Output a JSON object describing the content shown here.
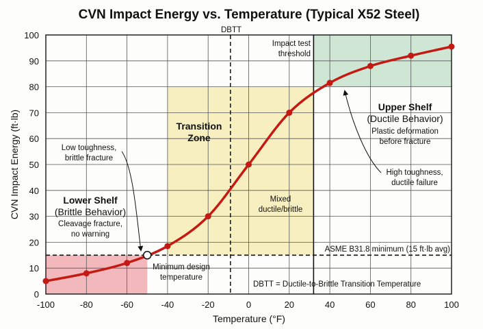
{
  "chart_data": {
    "type": "line",
    "title": "CVN Impact Energy vs. Temperature (Typical X52 Steel)",
    "xlabel": "Temperature (°F)",
    "ylabel": "CVN Impact Energy (ft·lb)",
    "xlim": [
      -100,
      100
    ],
    "ylim": [
      0,
      100
    ],
    "xticks": [
      -100,
      -80,
      -60,
      -40,
      -20,
      0,
      20,
      40,
      60,
      80,
      100
    ],
    "yticks": [
      0,
      10,
      20,
      30,
      40,
      50,
      60,
      70,
      80,
      90,
      100
    ],
    "grid": true,
    "series": [
      {
        "color": "#c41a14",
        "x": [
          -100,
          -80,
          -60,
          -40,
          -20,
          0,
          20,
          40,
          60,
          80,
          100
        ],
        "y": [
          5,
          8,
          12,
          18.5,
          30,
          50,
          70,
          81.5,
          88,
          92,
          95.5
        ]
      }
    ],
    "regions": [
      {
        "name": "lower-shelf",
        "x": [
          -100,
          -50
        ],
        "y": [
          0,
          15
        ],
        "color": "#f2b8bc"
      },
      {
        "name": "transition-zone",
        "x": [
          -40,
          32
        ],
        "y": [
          15,
          80
        ],
        "color": "#f7efbf"
      },
      {
        "name": "upper-shelf",
        "x": [
          32,
          100
        ],
        "y": [
          80,
          100
        ],
        "color": "#cfe6d5"
      }
    ],
    "dbtt": {
      "x": -9,
      "label": "DBTT"
    },
    "threshold": {
      "x": 32,
      "label1": "Impact test",
      "label2": "threshold"
    },
    "asme": {
      "y": 15,
      "label": "ASME B31.8 minimum (15 ft·lb avg)"
    },
    "design_point": {
      "x": -50,
      "y": 15,
      "label1": "Minimum design",
      "label2": "temperature"
    },
    "annotations": {
      "transition1": "Transition",
      "transition2": "Zone",
      "mixed1": "Mixed",
      "mixed2": "ductile/brittle",
      "lower_title": "Lower Shelf",
      "lower_sub": "(Brittle Behavior)",
      "lower_d1": "Cleavage fracture,",
      "lower_d2": "no warning",
      "low_t1": "Low toughness,",
      "low_t2": "brittle fracture",
      "upper_title": "Upper Shelf",
      "upper_sub": "(Ductile Behavior)",
      "upper_d1": "Plastic deformation",
      "upper_d2": "before fracture",
      "high_t1": "High toughness,",
      "high_t2": "ductile failure",
      "dbtt_def": "DBTT = Ductile-to-Brittle Transition Temperature"
    }
  }
}
